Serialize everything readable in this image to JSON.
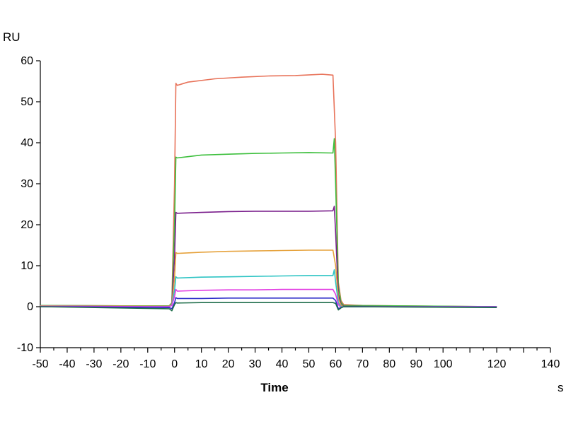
{
  "chart_data": {
    "type": "line",
    "title": "",
    "xlabel": "Time",
    "x_unit": "s",
    "ylabel": "RU",
    "xlim": [
      -50,
      140
    ],
    "ylim": [
      -10,
      60
    ],
    "x_ticks": [
      -50,
      -40,
      -30,
      -20,
      -10,
      0,
      10,
      20,
      30,
      40,
      50,
      60,
      70,
      80,
      90,
      100,
      120,
      140
    ],
    "y_ticks": [
      -10,
      0,
      10,
      20,
      30,
      40,
      50,
      60
    ],
    "grid": false,
    "legend": "none",
    "series": [
      {
        "color": "#e8735a",
        "points": [
          [
            -50,
            0.3
          ],
          [
            -20,
            0.2
          ],
          [
            -2,
            0.2
          ],
          [
            -1,
            1.0
          ],
          [
            0,
            30.0
          ],
          [
            0.5,
            54.5
          ],
          [
            1,
            54.0
          ],
          [
            5,
            54.8
          ],
          [
            15,
            55.6
          ],
          [
            25,
            56.0
          ],
          [
            35,
            56.3
          ],
          [
            45,
            56.4
          ],
          [
            55,
            56.7
          ],
          [
            59,
            56.5
          ],
          [
            60,
            40.0
          ],
          [
            61,
            6.0
          ],
          [
            62,
            1.5
          ],
          [
            63,
            0.5
          ],
          [
            70,
            0.3
          ],
          [
            100,
            0.1
          ],
          [
            120,
            0.0
          ]
        ]
      },
      {
        "color": "#3cbf3c",
        "points": [
          [
            -50,
            0.3
          ],
          [
            -20,
            0.2
          ],
          [
            -2,
            0.2
          ],
          [
            -1,
            0.8
          ],
          [
            0,
            20.0
          ],
          [
            0.5,
            36.5
          ],
          [
            1,
            36.3
          ],
          [
            10,
            37.0
          ],
          [
            20,
            37.2
          ],
          [
            30,
            37.4
          ],
          [
            40,
            37.5
          ],
          [
            50,
            37.6
          ],
          [
            59,
            37.5
          ],
          [
            59.5,
            41.0
          ],
          [
            60,
            30.0
          ],
          [
            61,
            5.0
          ],
          [
            62,
            1.0
          ],
          [
            63,
            0.3
          ],
          [
            120,
            0.0
          ]
        ]
      },
      {
        "color": "#7a1f8c",
        "points": [
          [
            -50,
            0.2
          ],
          [
            -2,
            0.1
          ],
          [
            -1,
            0.5
          ],
          [
            0,
            12.0
          ],
          [
            0.5,
            23.0
          ],
          [
            1,
            22.8
          ],
          [
            10,
            23.0
          ],
          [
            20,
            23.2
          ],
          [
            30,
            23.3
          ],
          [
            40,
            23.3
          ],
          [
            50,
            23.3
          ],
          [
            59,
            23.4
          ],
          [
            59.5,
            24.5
          ],
          [
            60,
            18.0
          ],
          [
            61,
            3.0
          ],
          [
            62,
            0.5
          ],
          [
            63,
            0.1
          ],
          [
            120,
            -0.1
          ]
        ]
      },
      {
        "color": "#e6a23c",
        "points": [
          [
            -50,
            0.2
          ],
          [
            -2,
            0.1
          ],
          [
            -1,
            0.5
          ],
          [
            0,
            7.0
          ],
          [
            0.5,
            13.2
          ],
          [
            1,
            13.0
          ],
          [
            10,
            13.3
          ],
          [
            20,
            13.5
          ],
          [
            30,
            13.6
          ],
          [
            40,
            13.7
          ],
          [
            50,
            13.8
          ],
          [
            59,
            13.8
          ],
          [
            60,
            10.0
          ],
          [
            61,
            2.0
          ],
          [
            62,
            0.3
          ],
          [
            63,
            0.0
          ],
          [
            120,
            0.0
          ]
        ]
      },
      {
        "color": "#2ec4c4",
        "points": [
          [
            -50,
            0.1
          ],
          [
            -2,
            0.0
          ],
          [
            -1,
            0.4
          ],
          [
            0,
            4.0
          ],
          [
            0.5,
            7.3
          ],
          [
            1,
            7.0
          ],
          [
            10,
            7.2
          ],
          [
            20,
            7.3
          ],
          [
            30,
            7.4
          ],
          [
            40,
            7.5
          ],
          [
            50,
            7.6
          ],
          [
            59,
            7.6
          ],
          [
            59.5,
            9.0
          ],
          [
            60,
            6.0
          ],
          [
            61,
            1.0
          ],
          [
            62,
            0.0
          ],
          [
            120,
            0.0
          ]
        ]
      },
      {
        "color": "#e23ce2",
        "points": [
          [
            -50,
            0.1
          ],
          [
            -2,
            0.0
          ],
          [
            -1,
            0.3
          ],
          [
            0,
            2.5
          ],
          [
            0.5,
            4.2
          ],
          [
            1,
            3.8
          ],
          [
            10,
            4.0
          ],
          [
            20,
            4.1
          ],
          [
            30,
            4.1
          ],
          [
            40,
            4.2
          ],
          [
            50,
            4.2
          ],
          [
            59,
            4.2
          ],
          [
            60,
            3.0
          ],
          [
            61,
            0.5
          ],
          [
            62,
            -0.2
          ],
          [
            63,
            0.0
          ],
          [
            120,
            0.0
          ]
        ]
      },
      {
        "color": "#2a2ac8",
        "points": [
          [
            -50,
            0.0
          ],
          [
            -2,
            -0.2
          ],
          [
            -1,
            -0.5
          ],
          [
            0,
            1.0
          ],
          [
            0.5,
            2.2
          ],
          [
            1,
            2.0
          ],
          [
            10,
            2.0
          ],
          [
            20,
            2.1
          ],
          [
            30,
            2.1
          ],
          [
            40,
            2.1
          ],
          [
            50,
            2.1
          ],
          [
            59,
            2.1
          ],
          [
            60,
            1.5
          ],
          [
            61,
            -0.5
          ],
          [
            62,
            -0.2
          ],
          [
            63,
            0.0
          ],
          [
            120,
            -0.1
          ]
        ]
      },
      {
        "color": "#1f6e4a",
        "points": [
          [
            -50,
            0.0
          ],
          [
            -2,
            -0.5
          ],
          [
            -1,
            -1.0
          ],
          [
            0,
            0.5
          ],
          [
            0.5,
            1.0
          ],
          [
            1,
            0.9
          ],
          [
            10,
            1.0
          ],
          [
            20,
            1.0
          ],
          [
            30,
            1.0
          ],
          [
            40,
            1.0
          ],
          [
            50,
            1.0
          ],
          [
            59,
            1.0
          ],
          [
            60,
            0.8
          ],
          [
            61,
            -0.8
          ],
          [
            62,
            -0.3
          ],
          [
            63,
            0.0
          ],
          [
            120,
            -0.2
          ]
        ]
      }
    ]
  }
}
